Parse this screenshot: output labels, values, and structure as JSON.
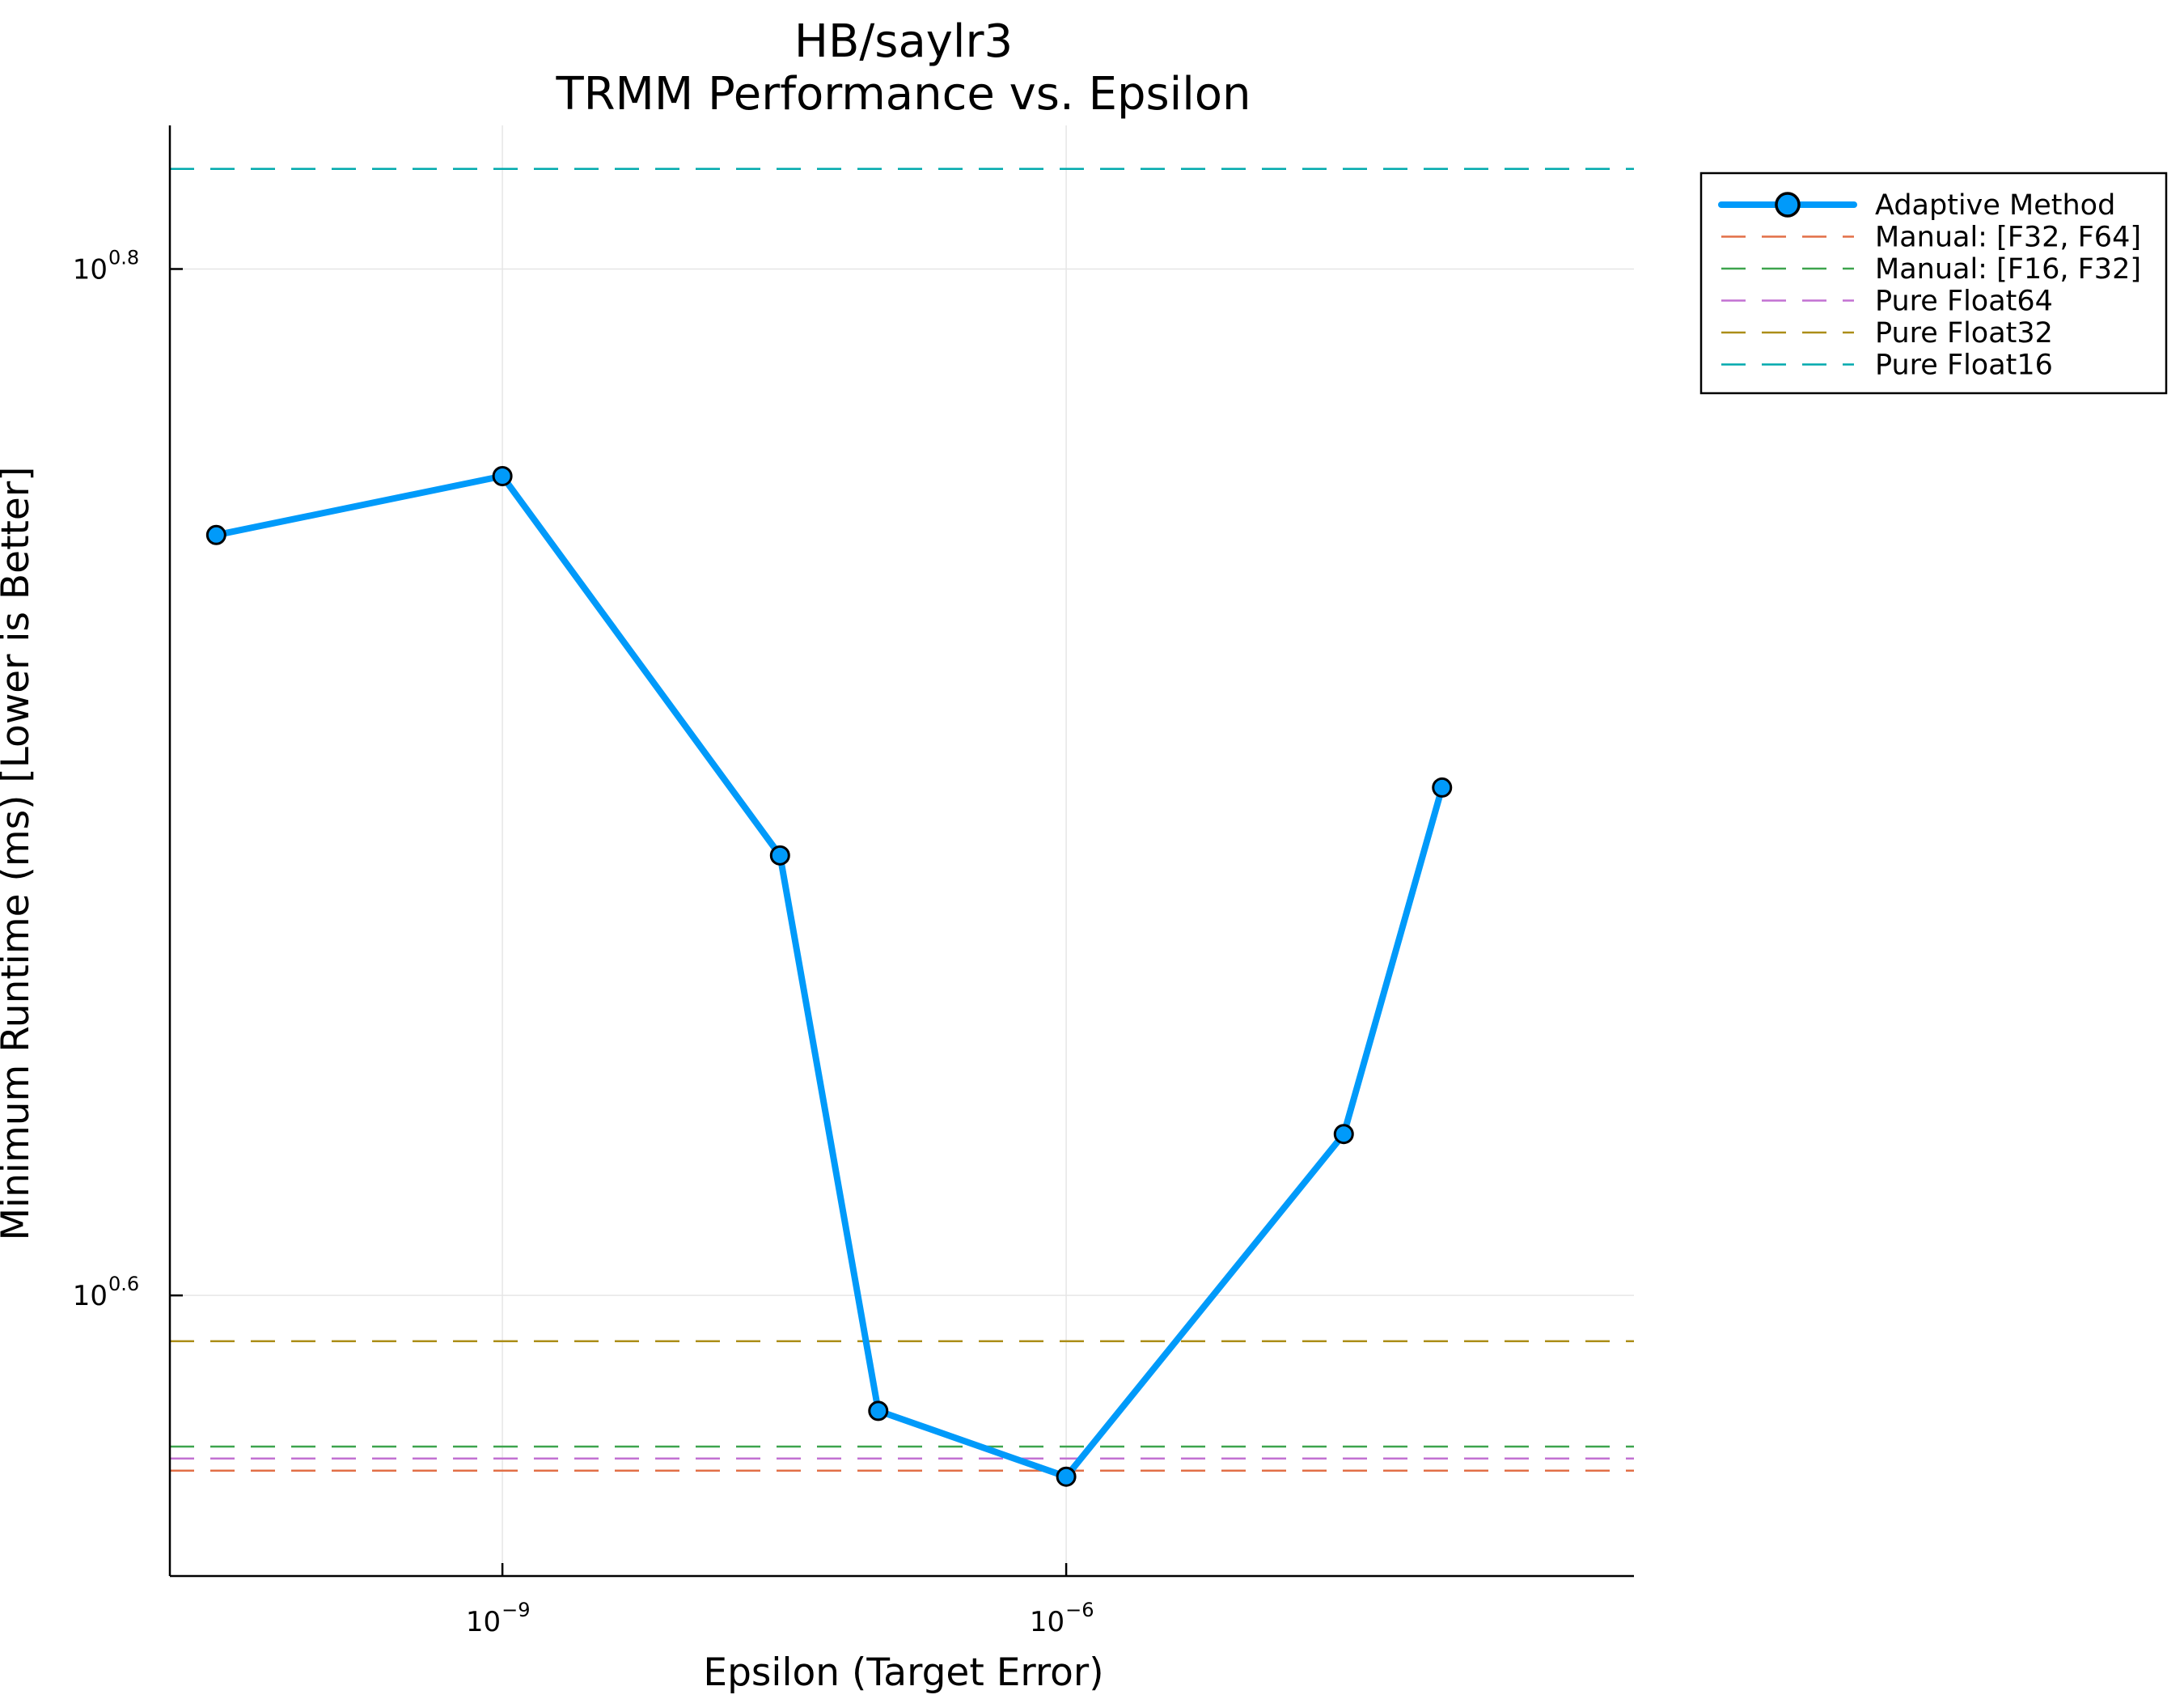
{
  "chart_data": {
    "type": "line",
    "title": "HB/saylr3",
    "subtitle": "TRMM Performance vs. Epsilon",
    "xlabel": "Epsilon (Target Error)",
    "ylabel": "Minimum Runtime (ms) [Lower is Better]",
    "xscale": "log10",
    "yscale": "log10",
    "xlim": [
      1.7e-11,
      0.00105
    ],
    "ylim": [
      3.51,
      6.73
    ],
    "x_ticks": [
      {
        "value": 1e-09,
        "base": "10",
        "exponent": "−9"
      },
      {
        "value": 1e-06,
        "base": "10",
        "exponent": "−6"
      }
    ],
    "y_ticks": [
      {
        "value": 3.981,
        "base": "10",
        "exponent": "0.6"
      },
      {
        "value": 6.31,
        "base": "10",
        "exponent": "0.8"
      }
    ],
    "grid": true,
    "legend_position": "outside-right-top",
    "series": [
      {
        "name": "Adaptive Method",
        "style": "solid-markers",
        "color": "#009AFA",
        "x": [
          3e-11,
          1e-09,
          3e-08,
          1e-07,
          1e-06,
          3e-05,
          0.0001
        ],
        "y": [
          5.6,
          5.75,
          4.85,
          3.78,
          3.67,
          4.28,
          5.0
        ]
      },
      {
        "name": "Manual: [F32, F64]",
        "style": "dashed",
        "color": "#E26F46",
        "y": 3.68
      },
      {
        "name": "Manual: [F16, F32]",
        "style": "dashed",
        "color": "#3DA44D",
        "y": 3.72
      },
      {
        "name": "Pure Float64",
        "style": "dashed",
        "color": "#C271D2",
        "y": 3.7
      },
      {
        "name": "Pure Float32",
        "style": "dashed",
        "color": "#AC8E18",
        "y": 3.9
      },
      {
        "name": "Pure Float16",
        "style": "dashed",
        "color": "#00A9AD",
        "y": 6.6
      }
    ]
  }
}
